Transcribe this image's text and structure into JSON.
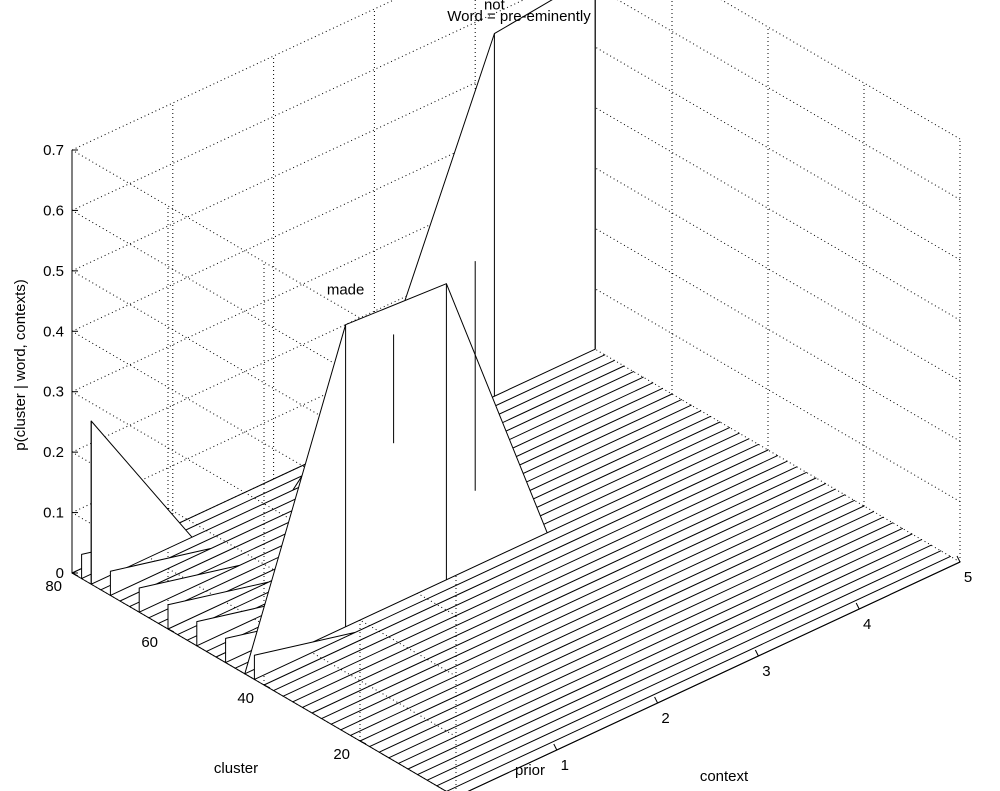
{
  "chart_data": {
    "type": "surface",
    "title": "Word = pre-eminently",
    "xlabel": "context",
    "ylabel": "cluster",
    "zlabel": "p(cluster | word, contexts)",
    "x_ticks": [
      "0",
      "1",
      "2",
      "3",
      "4",
      "5"
    ],
    "y_ticks": [
      "0",
      "20",
      "40",
      "60",
      "80"
    ],
    "z_ticks": [
      "0",
      "0.1",
      "0.2",
      "0.3",
      "0.4",
      "0.5",
      "0.6",
      "0.7"
    ],
    "x_categories": [
      "prior",
      "1",
      "2",
      "3",
      "4",
      "5"
    ],
    "xlim": [
      0,
      5
    ],
    "ylim": [
      0,
      80
    ],
    "zlim": [
      0,
      0.7
    ],
    "grid": true,
    "annotations": [
      {
        "text": "made",
        "x": 1,
        "y": 44,
        "z": 0.55
      },
      {
        "text": "not",
        "x": 4,
        "y": 76,
        "z": 0.64
      }
    ],
    "peaks": [
      {
        "x": 0,
        "y": 76,
        "z": 0.27
      },
      {
        "x": 1,
        "y": 44,
        "z": 0.5
      },
      {
        "x": 2,
        "y": 44,
        "z": 0.49
      },
      {
        "x": 3,
        "y": 59,
        "z": 0.38
      },
      {
        "x": 3,
        "y": 76,
        "z": 0.18
      },
      {
        "x": 4,
        "y": 76,
        "z": 0.6
      },
      {
        "x": 5,
        "y": 76,
        "z": 0.62
      }
    ]
  }
}
